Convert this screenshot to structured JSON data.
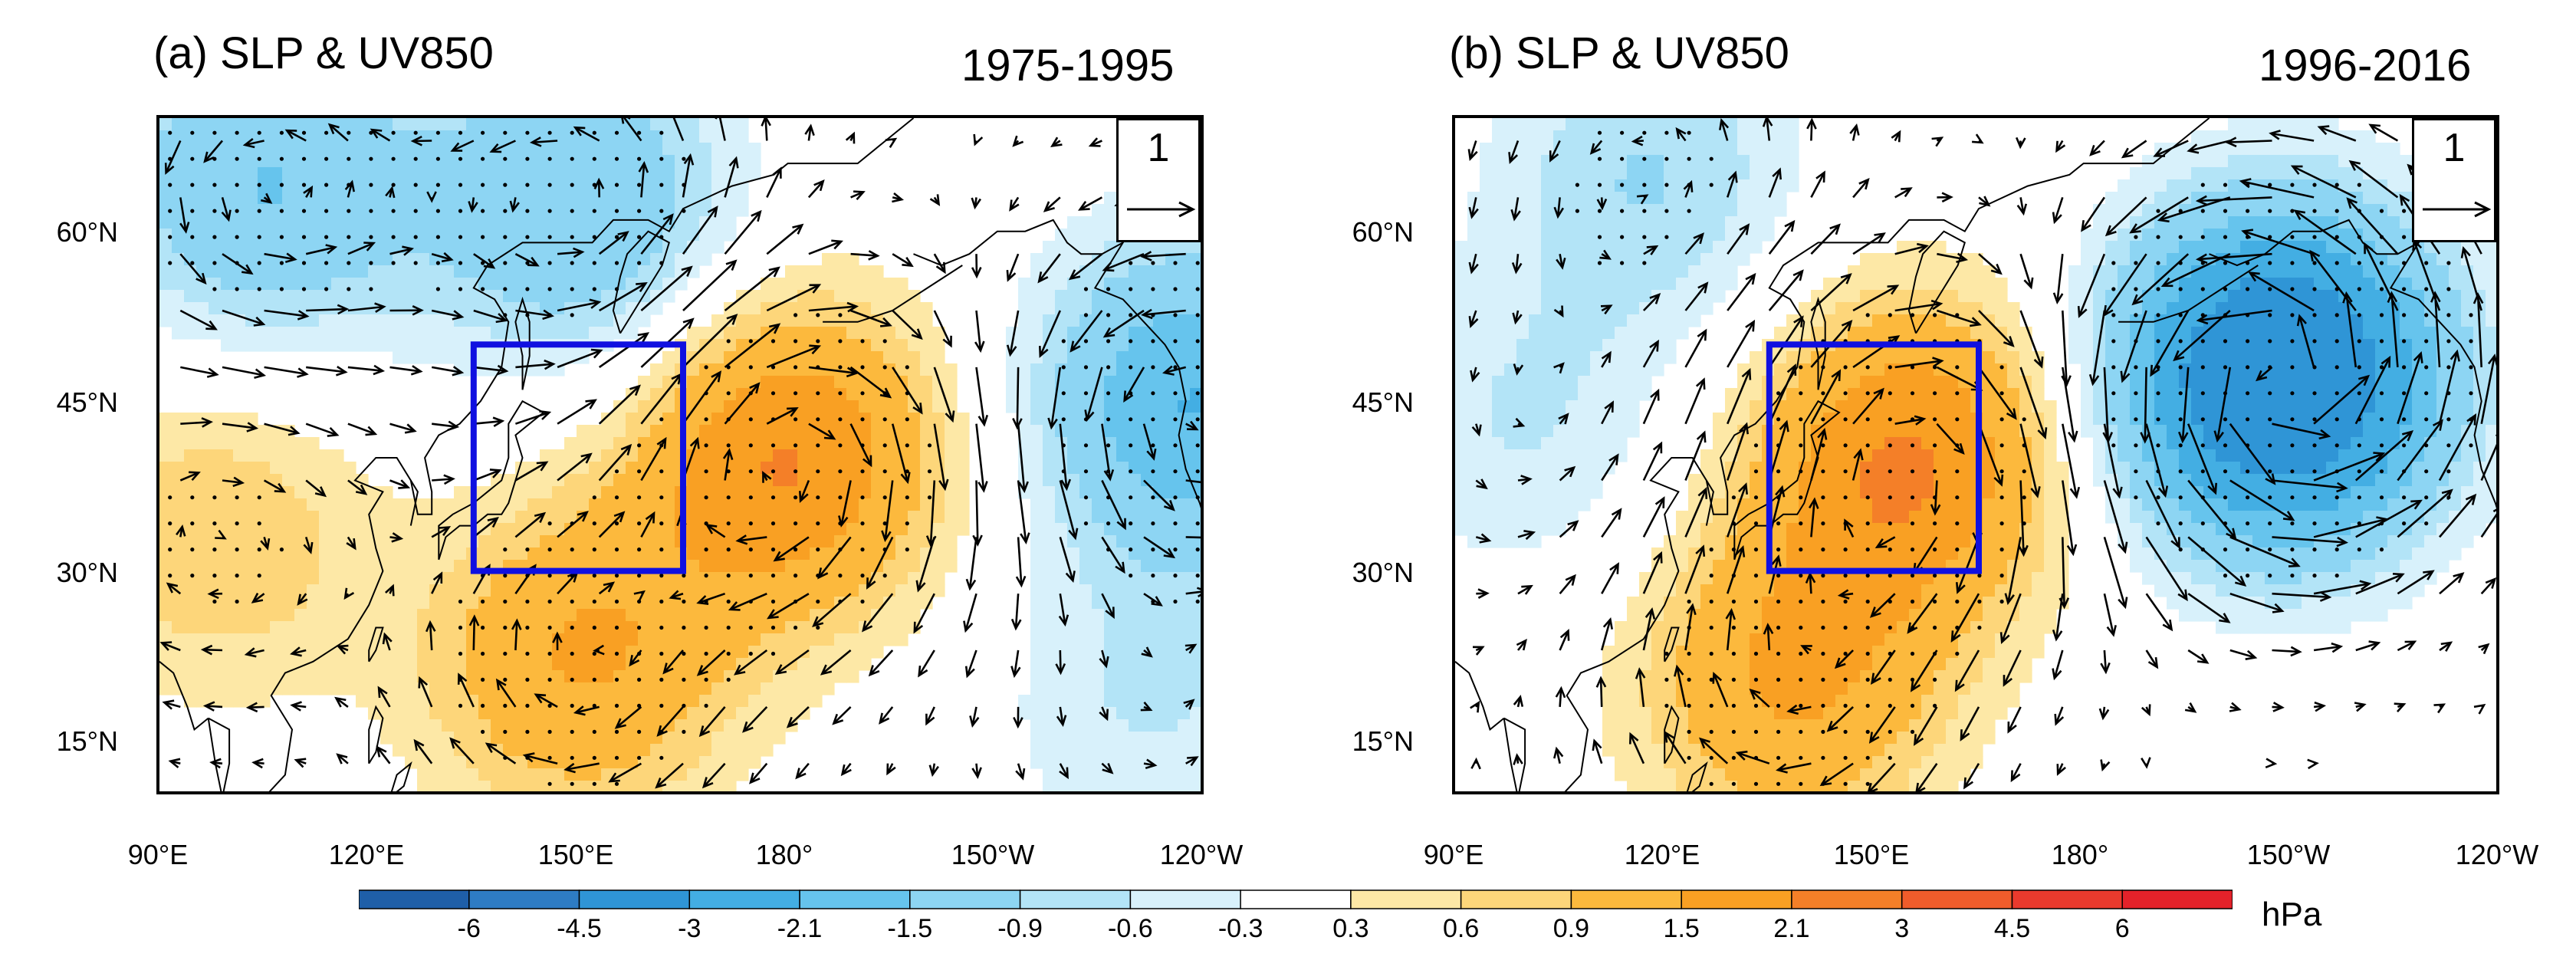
{
  "panels": [
    {
      "title": "(a) SLP & UV850",
      "period": "1975-1995",
      "reference_vector": "1",
      "slp_centers": [
        {
          "lon": 180,
          "lat": 40,
          "value": 2.1
        },
        {
          "lon": 150,
          "lat": 22,
          "value": 1.5
        },
        {
          "lon": 98,
          "lat": 33,
          "value": 0.9
        },
        {
          "lon": 238,
          "lat": 45,
          "value": -2.1
        },
        {
          "lon": 150,
          "lat": 62,
          "value": -1.5
        },
        {
          "lon": 105,
          "lat": 64,
          "value": -1.5
        },
        {
          "lon": 232,
          "lat": 18,
          "value": -0.6
        }
      ]
    },
    {
      "title": "(b) SLP & UV850",
      "period": "1996-2016",
      "reference_vector": "1",
      "slp_centers": [
        {
          "lon": 155,
          "lat": 40,
          "value": 2.1
        },
        {
          "lon": 138,
          "lat": 20,
          "value": 1.5
        },
        {
          "lon": 208,
          "lat": 47,
          "value": -4.5
        },
        {
          "lon": 100,
          "lat": 43,
          "value": -0.6
        },
        {
          "lon": 118,
          "lat": 65,
          "value": -0.9
        }
      ]
    }
  ],
  "axes": {
    "lat_ticks": [
      "15°N",
      "30°N",
      "45°N",
      "60°N"
    ],
    "lon_ticks": [
      "90°E",
      "120°E",
      "150°E",
      "180°",
      "150°W",
      "120°W"
    ],
    "lat_range": [
      10,
      70
    ],
    "lon_range": [
      90,
      240
    ]
  },
  "region_box": {
    "lon": [
      135,
      165
    ],
    "lat": [
      30,
      50
    ],
    "color": "#1010e0"
  },
  "colorbar": {
    "unit": "hPa",
    "labels": [
      "-6",
      "-4.5",
      "-3",
      "-2.1",
      "-1.5",
      "-0.9",
      "-0.6",
      "-0.3",
      "0.3",
      "0.6",
      "0.9",
      "1.5",
      "2.1",
      "3",
      "4.5",
      "6"
    ],
    "colors": [
      "#1f5fa8",
      "#2e7cc4",
      "#2f95d6",
      "#43aee3",
      "#66c4ed",
      "#8dd5f3",
      "#b3e4f7",
      "#d8f1fb",
      "#ffffff",
      "#fde8a6",
      "#fdd67a",
      "#fcb93d",
      "#f9a023",
      "#f47f28",
      "#f05c2b",
      "#ea3a2d",
      "#e3222a"
    ]
  }
}
